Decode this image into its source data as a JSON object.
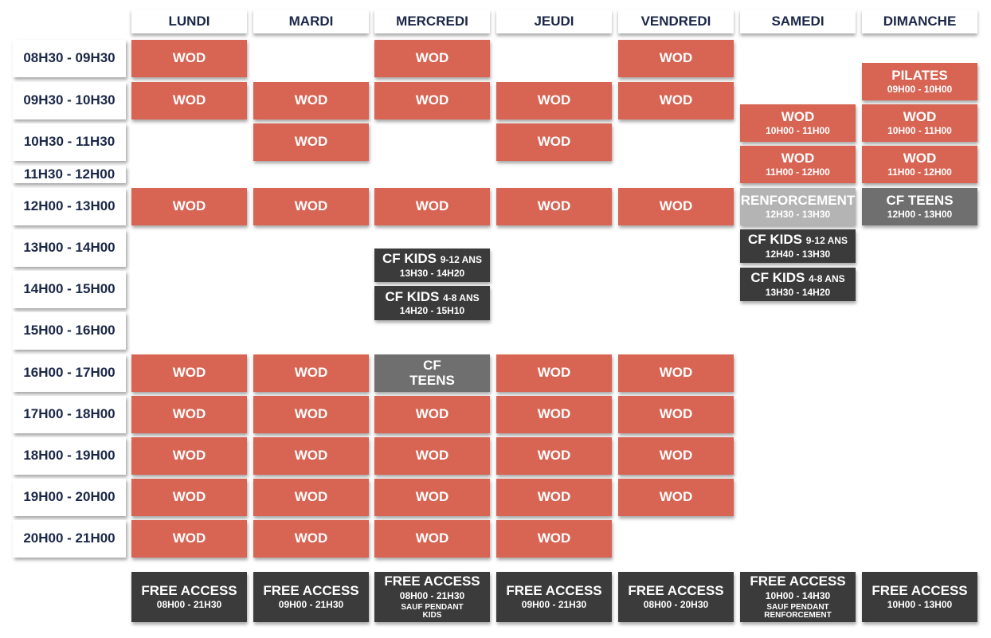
{
  "times": [
    "08H30 - 09H30",
    "09H30 - 10H30",
    "10H30 - 11H30",
    "11H30 - 12H00",
    "12H00 - 13H00",
    "13H00 - 14H00",
    "14H00 - 15H00",
    "15H00 - 16H00",
    "16H00 - 17H00",
    "17H00 - 18H00",
    "18H00 - 19H00",
    "19H00 - 20H00",
    "20H00 - 21H00"
  ],
  "schedule": [
    {
      "day": "LUNDI",
      "sessions": [
        {
          "title": "WOD"
        },
        {
          "title": "WOD"
        },
        {
          "title": "WOD"
        },
        {
          "title": "WOD"
        },
        {
          "title": "WOD"
        },
        {
          "title": "WOD"
        },
        {
          "title": "WOD"
        },
        {
          "title": "WOD"
        }
      ]
    },
    {
      "day": "MARDI",
      "sessions": [
        {
          "title": "WOD"
        },
        {
          "title": "WOD"
        },
        {
          "title": "WOD"
        },
        {
          "title": "WOD"
        },
        {
          "title": "WOD"
        },
        {
          "title": "WOD"
        },
        {
          "title": "WOD"
        },
        {
          "title": "WOD"
        }
      ]
    },
    {
      "day": "MERCREDI",
      "sessions": [
        {
          "title": "WOD"
        },
        {
          "title": "WOD"
        },
        {
          "title": "WOD"
        },
        {
          "title": "CF KIDS",
          "tag": "9-12 ANS",
          "time": "13H30 - 14H20"
        },
        {
          "title": "CF KIDS",
          "tag": "4-8 ANS",
          "time": "14H20 - 15H10"
        },
        {
          "title": "CF TEENS"
        },
        {
          "title": "WOD"
        },
        {
          "title": "WOD"
        },
        {
          "title": "WOD"
        },
        {
          "title": "WOD"
        }
      ]
    },
    {
      "day": "JEUDI",
      "sessions": [
        {
          "title": "WOD"
        },
        {
          "title": "WOD"
        },
        {
          "title": "WOD"
        },
        {
          "title": "WOD"
        },
        {
          "title": "WOD"
        },
        {
          "title": "WOD"
        },
        {
          "title": "WOD"
        },
        {
          "title": "WOD"
        }
      ]
    },
    {
      "day": "VENDREDI",
      "sessions": [
        {
          "title": "WOD"
        },
        {
          "title": "WOD"
        },
        {
          "title": "WOD"
        },
        {
          "title": "WOD"
        },
        {
          "title": "WOD"
        },
        {
          "title": "WOD"
        },
        {
          "title": "WOD"
        }
      ]
    },
    {
      "day": "SAMEDI",
      "sessions": [
        {
          "title": "WOD",
          "time": "10H00 - 11H00"
        },
        {
          "title": "WOD",
          "time": "11H00 - 12H00"
        },
        {
          "title": "RENFORCEMENT",
          "time": "12H30 - 13H30"
        },
        {
          "title": "CF KIDS",
          "tag": "9-12 ANS",
          "time": "12H40 - 13H30"
        },
        {
          "title": "CF KIDS",
          "tag": "4-8 ANS",
          "time": "13H30 - 14H20"
        }
      ]
    },
    {
      "day": "DIMANCHE",
      "sessions": [
        {
          "title": "PILATES",
          "time": "09H00 - 10H00"
        },
        {
          "title": "WOD",
          "time": "10H00 - 11H00"
        },
        {
          "title": "WOD",
          "time": "11H00 - 12H00"
        },
        {
          "title": "CF TEENS",
          "time": "12H00 - 13H00"
        }
      ]
    }
  ],
  "free_access": [
    {
      "title": "FREE ACCESS",
      "time": "08H00 - 21H30"
    },
    {
      "title": "FREE ACCESS",
      "time": "09H00 - 21H30"
    },
    {
      "title": "FREE ACCESS",
      "time": "08H00 - 21H30",
      "note": "SAUF PENDANT KIDS"
    },
    {
      "title": "FREE ACCESS",
      "time": "09H00 - 21H30"
    },
    {
      "title": "FREE ACCESS",
      "time": "08H00 - 20H30"
    },
    {
      "title": "FREE ACCESS",
      "time": "10H00 - 14H30",
      "note": "SAUF PENDANT RENFORCEMENT"
    },
    {
      "title": "FREE ACCESS",
      "time": "10H00 - 13H00"
    }
  ]
}
